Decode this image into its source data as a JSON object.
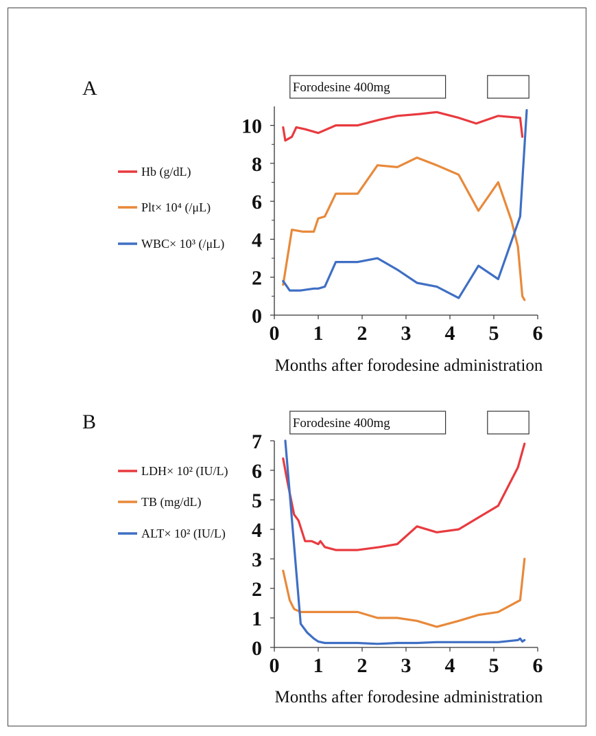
{
  "chart_data": [
    {
      "type": "line",
      "panel": "A",
      "xlabel": "Months after forodesine administration",
      "xlim": [
        0,
        6
      ],
      "ylim": [
        0,
        11
      ],
      "x_ticks": [
        "0",
        "1",
        "2",
        "3",
        "4",
        "5",
        "6"
      ],
      "y_ticks": [
        "0",
        "2",
        "4",
        "6",
        "8",
        "10"
      ],
      "treatment_bars": [
        {
          "label": "Forodesine 400mg",
          "x": [
            0.2,
            3.9
          ]
        },
        {
          "label": "",
          "x": [
            4.7,
            5.8
          ]
        }
      ],
      "legend_position": "left",
      "series": [
        {
          "name": "Hb (g/dL)",
          "color": "#e83a3f",
          "x": [
            0.2,
            0.25,
            0.4,
            0.5,
            0.7,
            1.0,
            1.4,
            1.9,
            2.4,
            2.8,
            3.3,
            3.7,
            4.2,
            4.6,
            5.1,
            5.6,
            5.65
          ],
          "y": [
            9.9,
            9.2,
            9.4,
            9.9,
            9.8,
            9.6,
            10.0,
            10.0,
            10.3,
            10.5,
            10.6,
            10.7,
            10.4,
            10.1,
            10.5,
            10.4,
            9.4
          ]
        },
        {
          "name": "Plt× 10⁴ (/μL)",
          "color": "#e8893a",
          "x": [
            0.2,
            0.4,
            0.65,
            0.9,
            1.0,
            1.15,
            1.4,
            1.9,
            2.35,
            2.8,
            3.25,
            3.7,
            4.2,
            4.65,
            5.1,
            5.4,
            5.55,
            5.65,
            5.7
          ],
          "y": [
            1.6,
            4.5,
            4.4,
            4.4,
            5.1,
            5.2,
            6.4,
            6.4,
            7.9,
            7.8,
            8.3,
            7.9,
            7.4,
            5.5,
            7.0,
            5.0,
            3.6,
            1.0,
            0.8
          ]
        },
        {
          "name": "WBC× 10³ (/μL)",
          "color": "#3f6fc4",
          "x": [
            0.2,
            0.35,
            0.6,
            0.9,
            1.0,
            1.15,
            1.4,
            1.9,
            2.35,
            2.8,
            3.25,
            3.7,
            4.2,
            4.65,
            5.1,
            5.6,
            5.75
          ],
          "y": [
            1.8,
            1.3,
            1.3,
            1.4,
            1.4,
            1.5,
            2.8,
            2.8,
            3.0,
            2.4,
            1.7,
            1.5,
            0.9,
            2.6,
            1.9,
            5.2,
            10.8
          ]
        }
      ]
    },
    {
      "type": "line",
      "panel": "B",
      "xlabel": "Months after forodesine administration",
      "xlim": [
        0,
        6
      ],
      "ylim": [
        0,
        7
      ],
      "x_ticks": [
        "0",
        "1",
        "2",
        "3",
        "4",
        "5",
        "6"
      ],
      "y_ticks": [
        "0",
        "1",
        "2",
        "3",
        "4",
        "5",
        "6",
        "7"
      ],
      "treatment_bars": [
        {
          "label": "Forodesine 400mg",
          "x": [
            0.2,
            3.9
          ]
        },
        {
          "label": "",
          "x": [
            4.7,
            5.8
          ]
        }
      ],
      "legend_position": "left",
      "series": [
        {
          "name": "LDH× 10² (IU/L)",
          "color": "#e83a3f",
          "x": [
            0.2,
            0.3,
            0.45,
            0.55,
            0.7,
            0.85,
            1.0,
            1.05,
            1.15,
            1.4,
            1.9,
            2.4,
            2.8,
            3.25,
            3.7,
            4.2,
            4.65,
            5.1,
            5.55,
            5.7
          ],
          "y": [
            6.4,
            5.6,
            4.5,
            4.3,
            3.6,
            3.6,
            3.5,
            3.6,
            3.4,
            3.3,
            3.3,
            3.4,
            3.5,
            4.1,
            3.9,
            4.0,
            4.4,
            4.8,
            6.1,
            6.9
          ]
        },
        {
          "name": "TB (mg/dL)",
          "color": "#e8893a",
          "x": [
            0.2,
            0.35,
            0.45,
            0.6,
            1.0,
            1.4,
            1.9,
            2.35,
            2.8,
            3.25,
            3.7,
            4.2,
            4.65,
            5.1,
            5.6,
            5.7
          ],
          "y": [
            2.6,
            1.6,
            1.3,
            1.2,
            1.2,
            1.2,
            1.2,
            1.0,
            1.0,
            0.9,
            0.7,
            0.9,
            1.1,
            1.2,
            1.6,
            3.0
          ]
        },
        {
          "name": "ALT× 10² (IU/L)",
          "color": "#3f6fc4",
          "x": [
            0.25,
            0.6,
            0.75,
            0.9,
            1.0,
            1.15,
            1.4,
            1.9,
            2.35,
            2.8,
            3.25,
            3.7,
            4.2,
            4.65,
            5.1,
            5.55,
            5.6,
            5.65,
            5.7
          ],
          "y": [
            7.0,
            0.8,
            0.5,
            0.3,
            0.2,
            0.15,
            0.15,
            0.15,
            0.12,
            0.15,
            0.15,
            0.18,
            0.18,
            0.18,
            0.18,
            0.25,
            0.3,
            0.2,
            0.25
          ]
        }
      ]
    }
  ]
}
